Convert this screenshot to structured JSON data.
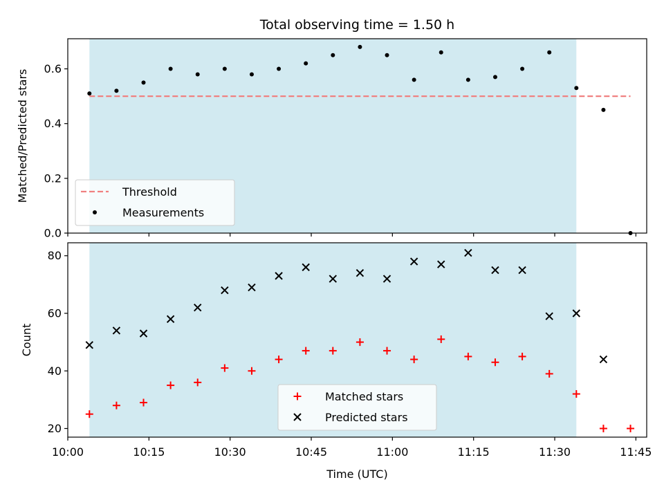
{
  "chart_data": [
    {
      "type": "scatter",
      "title": "Total observing time = 1.50 h",
      "xlabel": "",
      "ylabel": "Matched/Predicted stars",
      "xlim": [
        "10:00",
        "11:47"
      ],
      "ylim": [
        0,
        0.71
      ],
      "yticks": [
        0.0,
        0.2,
        0.4,
        0.6
      ],
      "ytick_labels": [
        "0.0",
        "0.2",
        "0.4",
        "0.6"
      ],
      "shaded_span": {
        "start": "10:04",
        "end": "11:34",
        "color": "#add8e6"
      },
      "threshold": {
        "name": "Threshold",
        "value": 0.5,
        "start": "10:04",
        "end": "11:44",
        "color": "#f08080",
        "style": "dashed"
      },
      "series": [
        {
          "name": "Measurements",
          "marker": "dot",
          "color": "#000000",
          "x": [
            "10:04",
            "10:09",
            "10:14",
            "10:19",
            "10:24",
            "10:29",
            "10:34",
            "10:39",
            "10:44",
            "10:49",
            "10:54",
            "10:59",
            "11:04",
            "11:09",
            "11:14",
            "11:19",
            "11:24",
            "11:29",
            "11:34",
            "11:39",
            "11:44"
          ],
          "y": [
            0.51,
            0.52,
            0.55,
            0.6,
            0.58,
            0.6,
            0.58,
            0.6,
            0.62,
            0.65,
            0.68,
            0.65,
            0.56,
            0.66,
            0.56,
            0.57,
            0.6,
            0.66,
            0.53,
            0.45,
            0.0
          ]
        }
      ],
      "legend": {
        "placement": "lower-left",
        "entries": [
          "Threshold",
          "Measurements"
        ]
      },
      "grid": false
    },
    {
      "type": "scatter",
      "title": "",
      "xlabel": "Time (UTC)",
      "ylabel": "Count",
      "xlim": [
        "10:00",
        "11:47"
      ],
      "ylim": [
        17,
        84.5
      ],
      "xticks": [
        "10:00",
        "10:15",
        "10:30",
        "10:45",
        "11:00",
        "11:15",
        "11:30",
        "11:45"
      ],
      "yticks": [
        20,
        40,
        60,
        80
      ],
      "ytick_labels": [
        "20",
        "40",
        "60",
        "80"
      ],
      "shaded_span": {
        "start": "10:04",
        "end": "11:34",
        "color": "#add8e6"
      },
      "series": [
        {
          "name": "Matched stars",
          "marker": "plus",
          "color": "#ff0000",
          "x": [
            "10:04",
            "10:09",
            "10:14",
            "10:19",
            "10:24",
            "10:29",
            "10:34",
            "10:39",
            "10:44",
            "10:49",
            "10:54",
            "10:59",
            "11:04",
            "11:09",
            "11:14",
            "11:19",
            "11:24",
            "11:29",
            "11:34",
            "11:39",
            "11:44"
          ],
          "y": [
            25,
            28,
            29,
            35,
            36,
            41,
            40,
            44,
            47,
            47,
            50,
            47,
            44,
            51,
            45,
            43,
            45,
            39,
            32,
            20,
            20
          ]
        },
        {
          "name": "Predicted stars",
          "marker": "x",
          "color": "#000000",
          "x": [
            "10:04",
            "10:09",
            "10:14",
            "10:19",
            "10:24",
            "10:29",
            "10:34",
            "10:39",
            "10:44",
            "10:49",
            "10:54",
            "10:59",
            "11:04",
            "11:09",
            "11:14",
            "11:19",
            "11:24",
            "11:29",
            "11:34",
            "11:39"
          ],
          "y": [
            49,
            54,
            53,
            58,
            62,
            68,
            69,
            73,
            76,
            72,
            74,
            72,
            78,
            77,
            81,
            75,
            75,
            59,
            60,
            44
          ]
        }
      ],
      "legend": {
        "placement": "lower-center",
        "entries": [
          "Matched stars",
          "Predicted stars"
        ]
      },
      "grid": false
    }
  ]
}
